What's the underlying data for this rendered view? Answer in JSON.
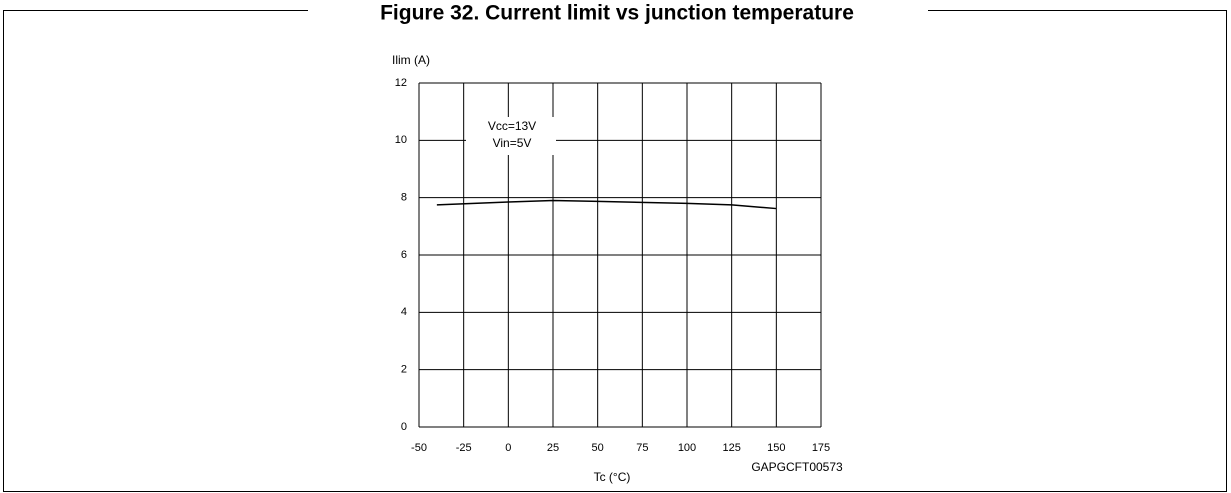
{
  "chart_data": {
    "type": "line",
    "title": "Figure 32. Current limit vs junction temperature",
    "ylabel": "Ilim (A)",
    "xlabel": "Tc (°C)",
    "annotations": [
      "Vcc=13V",
      "Vin=5V"
    ],
    "figure_id": "GAPGCFT00573",
    "x": [
      -40,
      0,
      25,
      50,
      100,
      125,
      150
    ],
    "series": [
      {
        "name": "Ilim",
        "color": "#000000",
        "values": [
          7.75,
          7.85,
          7.9,
          7.87,
          7.8,
          7.75,
          7.62
        ]
      }
    ],
    "xlim": [
      -50,
      175
    ],
    "xticks": [
      -50,
      -25,
      0,
      25,
      50,
      75,
      100,
      125,
      150,
      175
    ],
    "ylim": [
      0,
      12
    ],
    "yticks": [
      0,
      2,
      4,
      6,
      8,
      10,
      12
    ],
    "grid": true
  }
}
